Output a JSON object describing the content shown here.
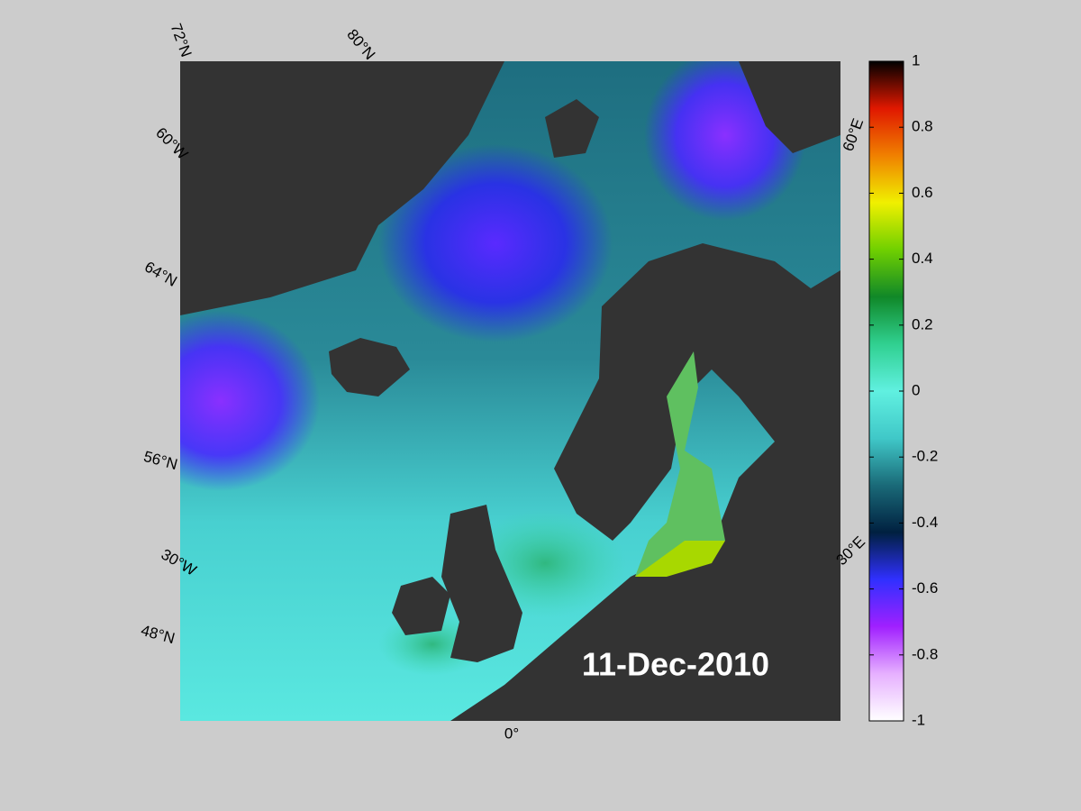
{
  "map": {
    "date_label": "11-Dec-2010",
    "graticule_labels": [
      "72°N",
      "80°N",
      "60°W",
      "64°N",
      "56°N",
      "30°W",
      "48°N",
      "0°",
      "60°E",
      "30°E"
    ],
    "land_color": "#333333",
    "colorbar": {
      "lim": [
        -1,
        1
      ],
      "ticks": [
        -1,
        -0.8,
        -0.6,
        -0.4,
        -0.2,
        0,
        0.2,
        0.4,
        0.6,
        0.8,
        1
      ],
      "colors": [
        "#ffffff",
        "#e6b0ff",
        "#a020ff",
        "#3030ff",
        "#002040",
        "#1a6a78",
        "#40c8c8",
        "#60f0e0",
        "#30d090",
        "#108828",
        "#70d000",
        "#f0f000",
        "#f08000",
        "#e01800",
        "#000000"
      ]
    }
  }
}
